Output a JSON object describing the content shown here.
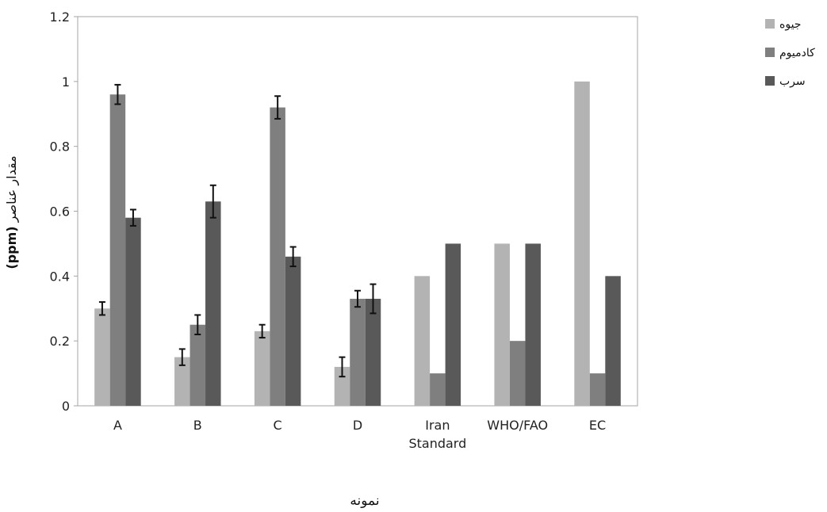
{
  "chart_data": {
    "type": "bar",
    "categories": [
      "A",
      "B",
      "C",
      "D",
      "Iran\nStandard",
      "WHO/FAO",
      "EC"
    ],
    "series": [
      {
        "name": "جیوه",
        "color": "#b3b3b3",
        "values": [
          0.3,
          0.15,
          0.23,
          0.12,
          0.4,
          0.5,
          1.0
        ],
        "errors": [
          0.02,
          0.025,
          0.02,
          0.03,
          null,
          null,
          null
        ]
      },
      {
        "name": "کادمیوم",
        "color": "#7f7f7f",
        "values": [
          0.96,
          0.25,
          0.92,
          0.33,
          0.1,
          0.2,
          0.1
        ],
        "errors": [
          0.03,
          0.03,
          0.035,
          0.025,
          null,
          null,
          null
        ]
      },
      {
        "name": "سرب",
        "color": "#595959",
        "values": [
          0.58,
          0.63,
          0.46,
          0.33,
          0.5,
          0.5,
          0.4
        ],
        "errors": [
          0.025,
          0.05,
          0.03,
          0.045,
          null,
          null,
          null
        ]
      }
    ],
    "yticks": [
      "0",
      "0.2",
      "0.4",
      "0.6",
      "0.8",
      "1",
      "1.2"
    ],
    "ylim": [
      0,
      1.2
    ],
    "xlabel": "نمونه",
    "ylabel": "مقدار عناصر",
    "ylabel_unit": "(ppm)",
    "legend_position": "top-right",
    "grid": false
  }
}
